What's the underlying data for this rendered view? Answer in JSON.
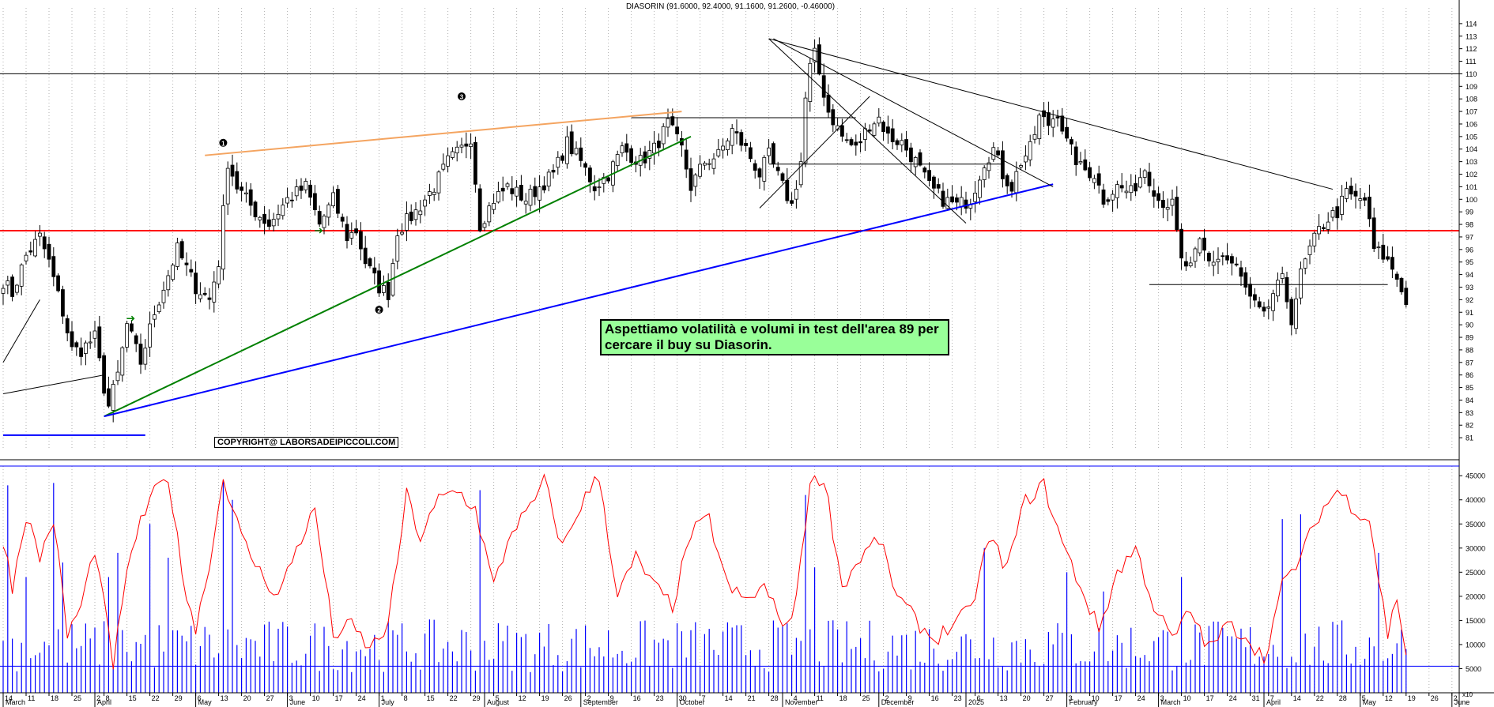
{
  "chart_data": {
    "type": "candlestick",
    "title": "DIASORIN (91.6000, 92.4000, 91.1600, 91.2600, -0.46000)",
    "price_axis": {
      "min": 80,
      "max": 115,
      "ticks": [
        81,
        82,
        83,
        84,
        85,
        86,
        87,
        88,
        89,
        90,
        91,
        92,
        93,
        94,
        95,
        96,
        97,
        98,
        99,
        100,
        101,
        102,
        103,
        104,
        105,
        106,
        107,
        108,
        109,
        110,
        111,
        112,
        113,
        114
      ]
    },
    "volume_axis": {
      "min": 0,
      "max": 47000,
      "ticks": [
        5000,
        10000,
        15000,
        20000,
        25000,
        30000,
        35000,
        40000,
        45000
      ],
      "scale_label": "x10"
    },
    "x_labels": [
      {
        "d": 0,
        "t": "14"
      },
      {
        "d": 5,
        "t": "11"
      },
      {
        "d": 10,
        "t": "18"
      },
      {
        "d": 15,
        "t": "25"
      },
      {
        "d": 20,
        "t": "2"
      },
      {
        "d": 22,
        "t": "8"
      },
      {
        "d": 27,
        "t": "15"
      },
      {
        "d": 32,
        "t": "22"
      },
      {
        "d": 37,
        "t": "29"
      },
      {
        "d": 42,
        "t": "6"
      },
      {
        "d": 47,
        "t": "13"
      },
      {
        "d": 52,
        "t": "20"
      },
      {
        "d": 57,
        "t": "27"
      },
      {
        "d": 62,
        "t": "3"
      },
      {
        "d": 67,
        "t": "10"
      },
      {
        "d": 72,
        "t": "17"
      },
      {
        "d": 77,
        "t": "24"
      },
      {
        "d": 82,
        "t": "1"
      },
      {
        "d": 87,
        "t": "8"
      },
      {
        "d": 92,
        "t": "15"
      },
      {
        "d": 97,
        "t": "22"
      },
      {
        "d": 102,
        "t": "29"
      },
      {
        "d": 107,
        "t": "5"
      },
      {
        "d": 112,
        "t": "12"
      },
      {
        "d": 117,
        "t": "19"
      },
      {
        "d": 122,
        "t": "26"
      },
      {
        "d": 127,
        "t": "2"
      },
      {
        "d": 132,
        "t": "9"
      },
      {
        "d": 137,
        "t": "16"
      },
      {
        "d": 142,
        "t": "23"
      },
      {
        "d": 147,
        "t": "30"
      },
      {
        "d": 152,
        "t": "7"
      },
      {
        "d": 157,
        "t": "14"
      },
      {
        "d": 162,
        "t": "21"
      },
      {
        "d": 167,
        "t": "28"
      },
      {
        "d": 172,
        "t": "4"
      },
      {
        "d": 177,
        "t": "11"
      },
      {
        "d": 182,
        "t": "18"
      },
      {
        "d": 187,
        "t": "25"
      },
      {
        "d": 192,
        "t": "2"
      },
      {
        "d": 197,
        "t": "9"
      },
      {
        "d": 202,
        "t": "16"
      },
      {
        "d": 207,
        "t": "23"
      },
      {
        "d": 212,
        "t": "6"
      },
      {
        "d": 217,
        "t": "13"
      },
      {
        "d": 222,
        "t": "20"
      },
      {
        "d": 227,
        "t": "27"
      },
      {
        "d": 232,
        "t": "3"
      },
      {
        "d": 237,
        "t": "10"
      },
      {
        "d": 242,
        "t": "17"
      },
      {
        "d": 247,
        "t": "24"
      },
      {
        "d": 252,
        "t": "3"
      },
      {
        "d": 257,
        "t": "10"
      },
      {
        "d": 262,
        "t": "17"
      },
      {
        "d": 267,
        "t": "24"
      },
      {
        "d": 272,
        "t": "31"
      },
      {
        "d": 276,
        "t": "7"
      },
      {
        "d": 281,
        "t": "14"
      },
      {
        "d": 286,
        "t": "22"
      },
      {
        "d": 291,
        "t": "28"
      },
      {
        "d": 296,
        "t": "5"
      },
      {
        "d": 301,
        "t": "12"
      },
      {
        "d": 306,
        "t": "19"
      },
      {
        "d": 311,
        "t": "26"
      },
      {
        "d": 316,
        "t": "2"
      }
    ],
    "month_labels": [
      {
        "d": 0,
        "t": "March"
      },
      {
        "d": 20,
        "t": "April"
      },
      {
        "d": 42,
        "t": "May"
      },
      {
        "d": 62,
        "t": "June"
      },
      {
        "d": 82,
        "t": "July"
      },
      {
        "d": 105,
        "t": "August"
      },
      {
        "d": 126,
        "t": "September"
      },
      {
        "d": 147,
        "t": "October"
      },
      {
        "d": 170,
        "t": "November"
      },
      {
        "d": 191,
        "t": "December"
      },
      {
        "d": 210,
        "t": "2025"
      },
      {
        "d": 232,
        "t": "February"
      },
      {
        "d": 252,
        "t": "March"
      },
      {
        "d": 275,
        "t": "April"
      },
      {
        "d": 296,
        "t": "May"
      },
      {
        "d": 316,
        "t": "June"
      }
    ],
    "last_bar": 306,
    "anchors": [
      {
        "d": 0,
        "p": 93.5
      },
      {
        "d": 2,
        "p": 92.5
      },
      {
        "d": 5,
        "p": 95.5
      },
      {
        "d": 8,
        "p": 97
      },
      {
        "d": 10,
        "p": 95
      },
      {
        "d": 13,
        "p": 91
      },
      {
        "d": 15,
        "p": 88
      },
      {
        "d": 17,
        "p": 88
      },
      {
        "d": 20,
        "p": 89
      },
      {
        "d": 22,
        "p": 85
      },
      {
        "d": 23,
        "p": 83.5
      },
      {
        "d": 25,
        "p": 86
      },
      {
        "d": 27,
        "p": 90
      },
      {
        "d": 30,
        "p": 87
      },
      {
        "d": 33,
        "p": 91
      },
      {
        "d": 36,
        "p": 94
      },
      {
        "d": 38,
        "p": 96
      },
      {
        "d": 42,
        "p": 93
      },
      {
        "d": 45,
        "p": 92
      },
      {
        "d": 47,
        "p": 95
      },
      {
        "d": 49,
        "p": 103
      },
      {
        "d": 51,
        "p": 101
      },
      {
        "d": 55,
        "p": 99
      },
      {
        "d": 58,
        "p": 98
      },
      {
        "d": 62,
        "p": 100
      },
      {
        "d": 66,
        "p": 101
      },
      {
        "d": 69,
        "p": 98
      },
      {
        "d": 72,
        "p": 100
      },
      {
        "d": 75,
        "p": 97
      },
      {
        "d": 77,
        "p": 97.5
      },
      {
        "d": 79,
        "p": 95
      },
      {
        "d": 82,
        "p": 93
      },
      {
        "d": 84,
        "p": 92.5
      },
      {
        "d": 86,
        "p": 97.5
      },
      {
        "d": 90,
        "p": 99
      },
      {
        "d": 94,
        "p": 101
      },
      {
        "d": 97,
        "p": 103
      },
      {
        "d": 100,
        "p": 104
      },
      {
        "d": 102,
        "p": 105
      },
      {
        "d": 104,
        "p": 98
      },
      {
        "d": 107,
        "p": 100
      },
      {
        "d": 110,
        "p": 101
      },
      {
        "d": 114,
        "p": 100
      },
      {
        "d": 117,
        "p": 101
      },
      {
        "d": 120,
        "p": 102
      },
      {
        "d": 123,
        "p": 104.5
      },
      {
        "d": 126,
        "p": 103
      },
      {
        "d": 129,
        "p": 101
      },
      {
        "d": 132,
        "p": 102
      },
      {
        "d": 135,
        "p": 104
      },
      {
        "d": 139,
        "p": 103
      },
      {
        "d": 142,
        "p": 104
      },
      {
        "d": 145,
        "p": 106
      },
      {
        "d": 148,
        "p": 104
      },
      {
        "d": 150,
        "p": 101
      },
      {
        "d": 153,
        "p": 103
      },
      {
        "d": 156,
        "p": 103.5
      },
      {
        "d": 159,
        "p": 105.5
      },
      {
        "d": 162,
        "p": 104
      },
      {
        "d": 165,
        "p": 102
      },
      {
        "d": 167,
        "p": 103.5
      },
      {
        "d": 170,
        "p": 101
      },
      {
        "d": 172,
        "p": 99.5
      },
      {
        "d": 174,
        "p": 103
      },
      {
        "d": 175,
        "p": 108
      },
      {
        "d": 176,
        "p": 110.5
      },
      {
        "d": 177,
        "p": 111.5
      },
      {
        "d": 178,
        "p": 110
      },
      {
        "d": 180,
        "p": 107
      },
      {
        "d": 183,
        "p": 105
      },
      {
        "d": 186,
        "p": 104
      },
      {
        "d": 189,
        "p": 106
      },
      {
        "d": 191,
        "p": 106.5
      },
      {
        "d": 193,
        "p": 105
      },
      {
        "d": 196,
        "p": 104.5
      },
      {
        "d": 199,
        "p": 103
      },
      {
        "d": 202,
        "p": 101
      },
      {
        "d": 205,
        "p": 100
      },
      {
        "d": 208,
        "p": 99.5
      },
      {
        "d": 211,
        "p": 100
      },
      {
        "d": 214,
        "p": 103
      },
      {
        "d": 216,
        "p": 104
      },
      {
        "d": 218,
        "p": 102
      },
      {
        "d": 220,
        "p": 101
      },
      {
        "d": 222,
        "p": 103
      },
      {
        "d": 224,
        "p": 104
      },
      {
        "d": 226,
        "p": 106.5
      },
      {
        "d": 228,
        "p": 106
      },
      {
        "d": 230,
        "p": 107
      },
      {
        "d": 232,
        "p": 104.5
      },
      {
        "d": 235,
        "p": 102.5
      },
      {
        "d": 238,
        "p": 102
      },
      {
        "d": 240,
        "p": 100
      },
      {
        "d": 243,
        "p": 101
      },
      {
        "d": 246,
        "p": 100.5
      },
      {
        "d": 249,
        "p": 102.5
      },
      {
        "d": 252,
        "p": 100
      },
      {
        "d": 255,
        "p": 99.5
      },
      {
        "d": 257,
        "p": 95
      },
      {
        "d": 259,
        "p": 94.5
      },
      {
        "d": 261,
        "p": 96.5
      },
      {
        "d": 263,
        "p": 95
      },
      {
        "d": 266,
        "p": 95.5
      },
      {
        "d": 269,
        "p": 94.5
      },
      {
        "d": 272,
        "p": 92
      },
      {
        "d": 275,
        "p": 90.5
      },
      {
        "d": 277,
        "p": 92.5
      },
      {
        "d": 279,
        "p": 93.5
      },
      {
        "d": 281,
        "p": 90.5
      },
      {
        "d": 283,
        "p": 94
      },
      {
        "d": 285,
        "p": 96
      },
      {
        "d": 287,
        "p": 97.5
      },
      {
        "d": 289,
        "p": 98.5
      },
      {
        "d": 291,
        "p": 99
      },
      {
        "d": 293,
        "p": 100.5
      },
      {
        "d": 295,
        "p": 100
      },
      {
        "d": 297,
        "p": 100
      },
      {
        "d": 299,
        "p": 96
      },
      {
        "d": 301,
        "p": 95.5
      },
      {
        "d": 303,
        "p": 94.5
      },
      {
        "d": 305,
        "p": 93
      },
      {
        "d": 306,
        "p": 91.5
      }
    ],
    "volume_mean": 9500,
    "volume_spikes": [
      {
        "d": 1,
        "v": 43000
      },
      {
        "d": 5,
        "v": 24000
      },
      {
        "d": 11,
        "v": 43500
      },
      {
        "d": 13,
        "v": 27000
      },
      {
        "d": 23,
        "v": 24000
      },
      {
        "d": 25,
        "v": 29000
      },
      {
        "d": 32,
        "v": 35000
      },
      {
        "d": 36,
        "v": 28000
      },
      {
        "d": 48,
        "v": 44000
      },
      {
        "d": 50,
        "v": 40000
      },
      {
        "d": 104,
        "v": 42000
      },
      {
        "d": 175,
        "v": 41000
      },
      {
        "d": 177,
        "v": 26000
      },
      {
        "d": 214,
        "v": 30000
      },
      {
        "d": 232,
        "v": 25000
      },
      {
        "d": 240,
        "v": 21000
      },
      {
        "d": 257,
        "v": 24000
      },
      {
        "d": 279,
        "v": 36000
      },
      {
        "d": 283,
        "v": 37000
      },
      {
        "d": 300,
        "v": 29000
      }
    ],
    "rsi_anchors": [
      {
        "d": 0,
        "v": 32000
      },
      {
        "d": 2,
        "v": 22000
      },
      {
        "d": 5,
        "v": 37000
      },
      {
        "d": 8,
        "v": 28000
      },
      {
        "d": 11,
        "v": 36000
      },
      {
        "d": 14,
        "v": 12000
      },
      {
        "d": 17,
        "v": 18000
      },
      {
        "d": 20,
        "v": 30000
      },
      {
        "d": 24,
        "v": 6000
      },
      {
        "d": 28,
        "v": 30000
      },
      {
        "d": 32,
        "v": 40000
      },
      {
        "d": 36,
        "v": 45000
      },
      {
        "d": 39,
        "v": 25000
      },
      {
        "d": 42,
        "v": 13000
      },
      {
        "d": 46,
        "v": 32000
      },
      {
        "d": 48,
        "v": 45000
      },
      {
        "d": 52,
        "v": 32000
      },
      {
        "d": 56,
        "v": 25000
      },
      {
        "d": 60,
        "v": 20000
      },
      {
        "d": 64,
        "v": 30000
      },
      {
        "d": 68,
        "v": 38000
      },
      {
        "d": 72,
        "v": 12000
      },
      {
        "d": 76,
        "v": 14000
      },
      {
        "d": 80,
        "v": 9000
      },
      {
        "d": 84,
        "v": 14000
      },
      {
        "d": 88,
        "v": 41000
      },
      {
        "d": 91,
        "v": 32000
      },
      {
        "d": 95,
        "v": 40000
      },
      {
        "d": 99,
        "v": 42000
      },
      {
        "d": 103,
        "v": 38000
      },
      {
        "d": 107,
        "v": 22000
      },
      {
        "d": 111,
        "v": 34000
      },
      {
        "d": 115,
        "v": 38000
      },
      {
        "d": 118,
        "v": 44000
      },
      {
        "d": 122,
        "v": 30000
      },
      {
        "d": 126,
        "v": 39000
      },
      {
        "d": 130,
        "v": 45000
      },
      {
        "d": 134,
        "v": 20000
      },
      {
        "d": 138,
        "v": 28000
      },
      {
        "d": 142,
        "v": 22000
      },
      {
        "d": 146,
        "v": 18000
      },
      {
        "d": 150,
        "v": 33000
      },
      {
        "d": 154,
        "v": 36000
      },
      {
        "d": 158,
        "v": 22000
      },
      {
        "d": 162,
        "v": 19000
      },
      {
        "d": 166,
        "v": 22000
      },
      {
        "d": 169,
        "v": 16000
      },
      {
        "d": 172,
        "v": 14000
      },
      {
        "d": 176,
        "v": 43000
      },
      {
        "d": 179,
        "v": 45000
      },
      {
        "d": 183,
        "v": 22000
      },
      {
        "d": 187,
        "v": 28000
      },
      {
        "d": 191,
        "v": 32000
      },
      {
        "d": 195,
        "v": 20000
      },
      {
        "d": 199,
        "v": 15000
      },
      {
        "d": 203,
        "v": 11000
      },
      {
        "d": 207,
        "v": 14000
      },
      {
        "d": 211,
        "v": 17000
      },
      {
        "d": 215,
        "v": 32000
      },
      {
        "d": 219,
        "v": 26000
      },
      {
        "d": 223,
        "v": 40000
      },
      {
        "d": 227,
        "v": 43000
      },
      {
        "d": 231,
        "v": 31000
      },
      {
        "d": 235,
        "v": 22000
      },
      {
        "d": 239,
        "v": 13000
      },
      {
        "d": 243,
        "v": 25000
      },
      {
        "d": 247,
        "v": 30000
      },
      {
        "d": 251,
        "v": 18000
      },
      {
        "d": 255,
        "v": 11000
      },
      {
        "d": 259,
        "v": 17000
      },
      {
        "d": 263,
        "v": 9000
      },
      {
        "d": 267,
        "v": 14000
      },
      {
        "d": 271,
        "v": 12000
      },
      {
        "d": 275,
        "v": 7000
      },
      {
        "d": 279,
        "v": 22000
      },
      {
        "d": 283,
        "v": 28000
      },
      {
        "d": 287,
        "v": 37000
      },
      {
        "d": 291,
        "v": 42000
      },
      {
        "d": 295,
        "v": 38000
      },
      {
        "d": 298,
        "v": 36000
      },
      {
        "d": 300,
        "v": 24000
      },
      {
        "d": 302,
        "v": 12000
      },
      {
        "d": 304,
        "v": 20000
      },
      {
        "d": 306,
        "v": 8000
      }
    ],
    "horizontal_levels": [
      {
        "price": 110,
        "color": "#000000"
      },
      {
        "price": 97.5,
        "color": "#ff0000"
      },
      {
        "price": 81.2,
        "color": "#0000ff",
        "from_d": 0,
        "to_d": 31
      }
    ],
    "volume_level": 5500,
    "trendlines": [
      {
        "x1": 0,
        "y1": 87,
        "x2": 8,
        "y2": 92,
        "color": "#000000"
      },
      {
        "x1": 0,
        "y1": 84.5,
        "x2": 22,
        "y2": 86,
        "color": "#000000"
      },
      {
        "x1": 44,
        "y1": 103.5,
        "x2": 148,
        "y2": 107,
        "color": "#f4a460"
      },
      {
        "x1": 22,
        "y1": 82.7,
        "x2": 150,
        "y2": 105,
        "color": "#008000"
      },
      {
        "x1": 22,
        "y1": 82.7,
        "x2": 229,
        "y2": 101.2,
        "color": "#0000ff"
      },
      {
        "x1": 137,
        "y1": 106.5,
        "x2": 186,
        "y2": 106.5,
        "color": "#000000"
      },
      {
        "x1": 167,
        "y1": 102.8,
        "x2": 218,
        "y2": 102.8,
        "color": "#000000"
      },
      {
        "x1": 250,
        "y1": 93.2,
        "x2": 302,
        "y2": 93.2,
        "color": "#000000"
      },
      {
        "x1": 167,
        "y1": 112.8,
        "x2": 290,
        "y2": 100.8,
        "color": "#000000"
      },
      {
        "x1": 167,
        "y1": 112.8,
        "x2": 210,
        "y2": 98.1,
        "color": "#000000"
      },
      {
        "x1": 168,
        "y1": 112.8,
        "x2": 229,
        "y2": 101,
        "color": "#000000"
      },
      {
        "x1": 165,
        "y1": 99.3,
        "x2": 189,
        "y2": 108.2,
        "color": "#000000"
      }
    ],
    "markers": [
      {
        "d": 48,
        "p": 104.5,
        "t": "1"
      },
      {
        "d": 82,
        "p": 91.2,
        "t": "2"
      },
      {
        "d": 100,
        "p": 108.2,
        "t": "3"
      }
    ],
    "arrows": [
      {
        "d": 28,
        "p": 90.5
      },
      {
        "d": 69,
        "p": 97.5
      }
    ],
    "annotation": "Aspettiamo volatilità e volumi in test dell'area 89 per cercare il buy su Diasorin.",
    "copyright": "COPYRIGHT@ LABORSADEIPICCOLI.COM"
  }
}
